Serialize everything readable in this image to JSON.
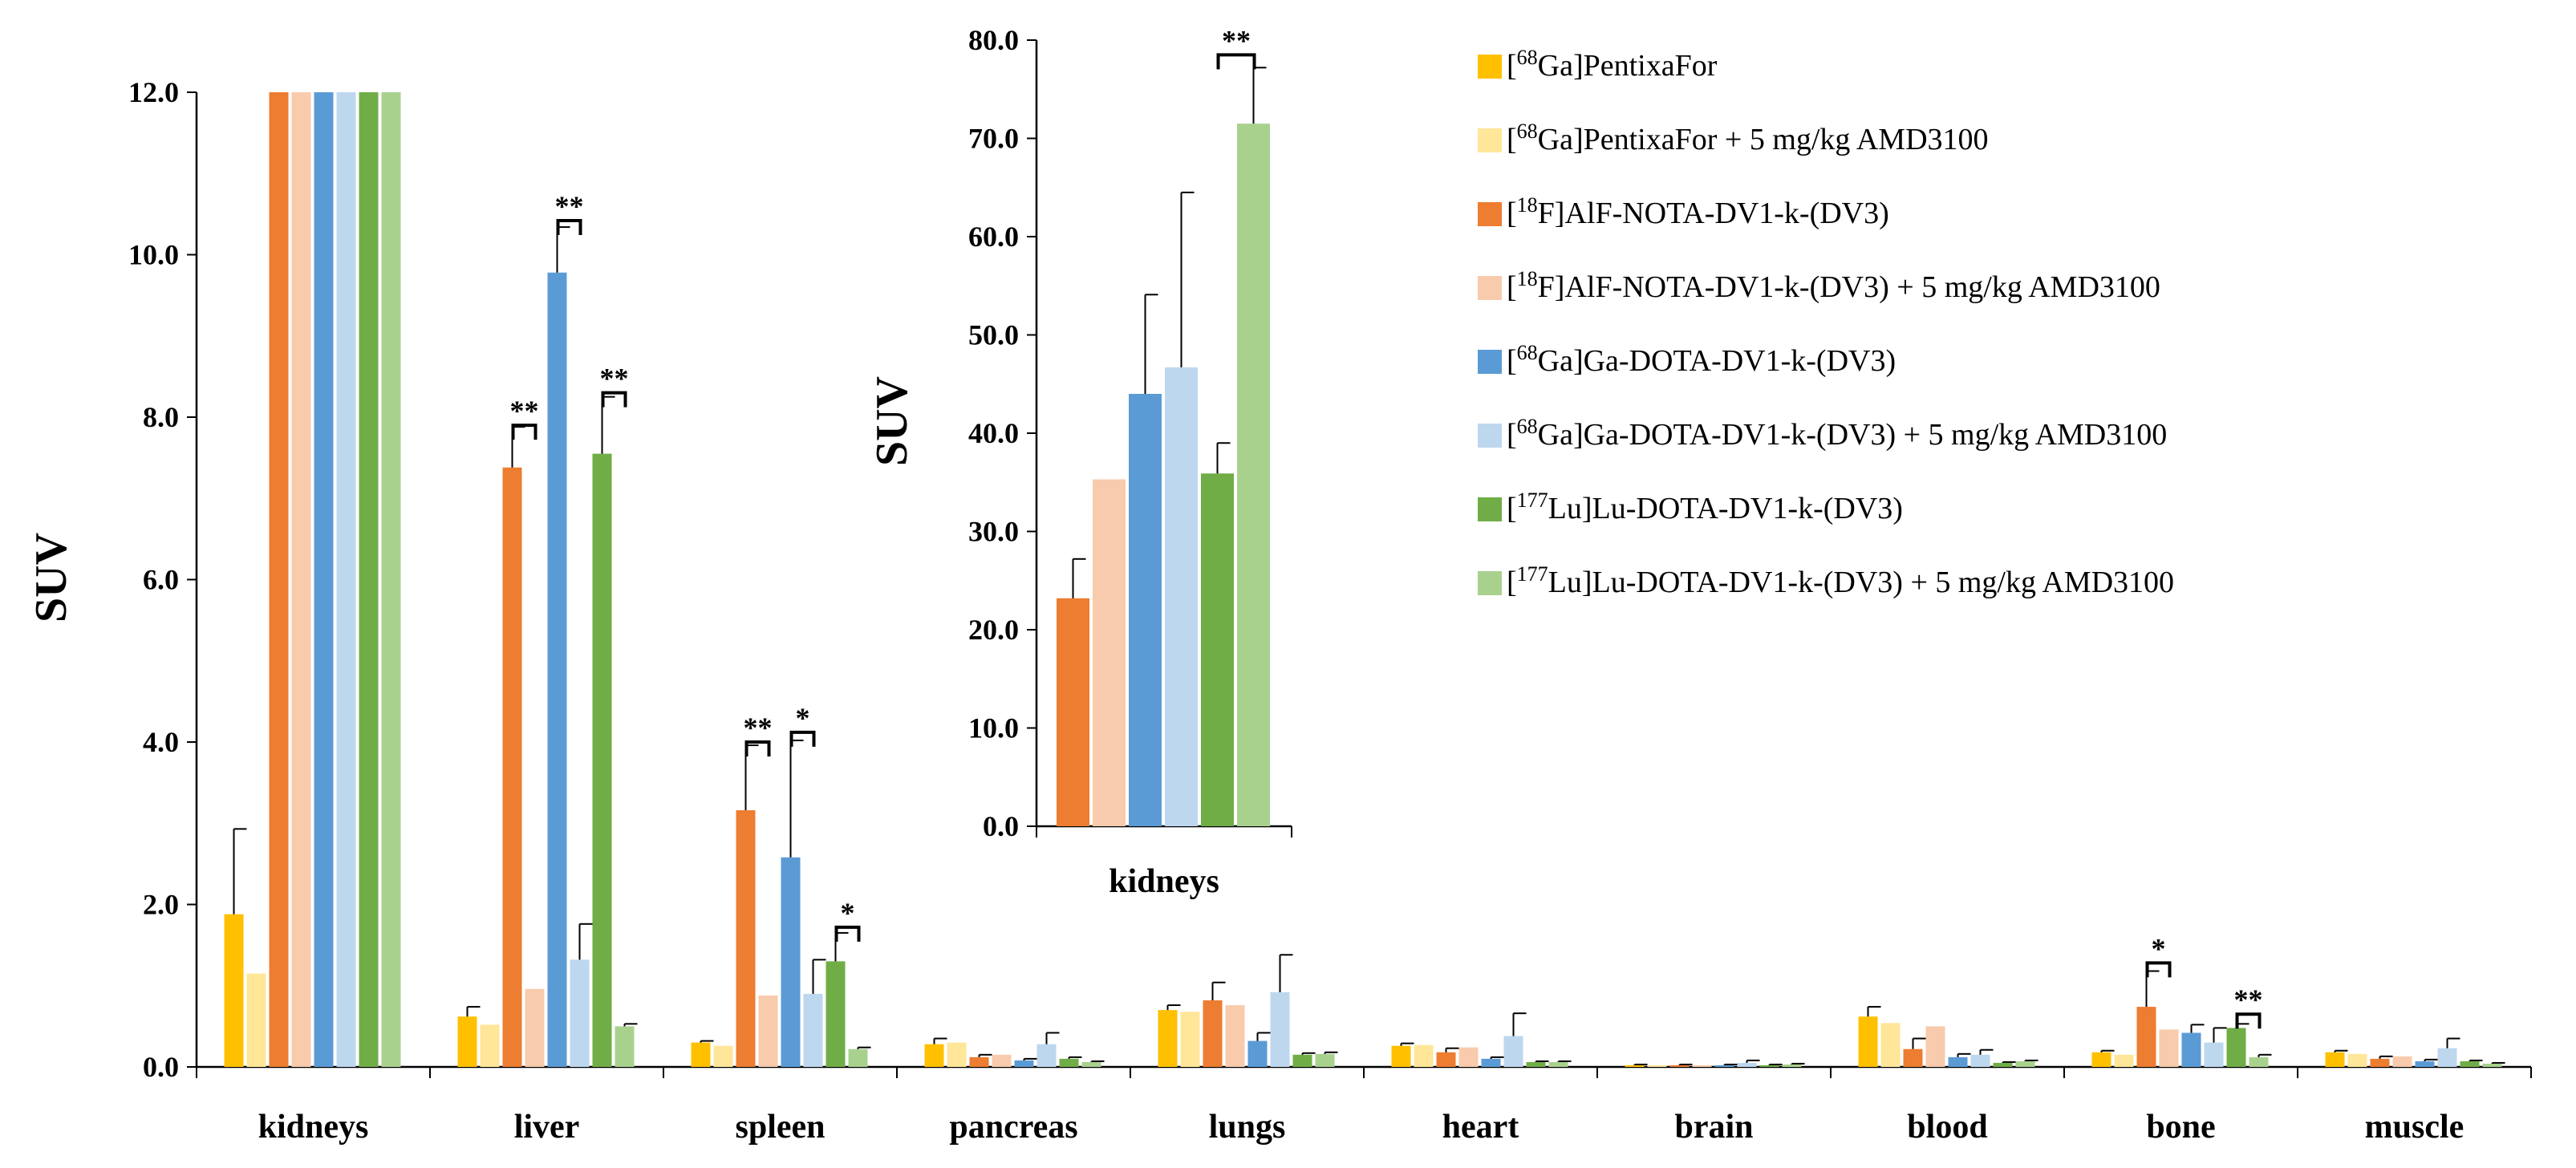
{
  "chart_data": [
    {
      "id": "main",
      "type": "bar",
      "ylabel": "SUV",
      "xlabel": "",
      "ylim": [
        0,
        12
      ],
      "yticks": [
        "0.0",
        "2.0",
        "4.0",
        "6.0",
        "8.0",
        "10.0",
        "12.0"
      ],
      "ytick_values": [
        0,
        2,
        4,
        6,
        8,
        10,
        12
      ],
      "categories": [
        "kidneys",
        "liver",
        "spleen",
        "pancreas",
        "lungs",
        "heart",
        "brain",
        "blood",
        "bone",
        "muscle"
      ],
      "series": [
        {
          "name": "[68Ga]PentixaFor",
          "color": "#FFC000",
          "values": [
            1.88,
            0.62,
            0.3,
            0.28,
            0.7,
            0.26,
            0.02,
            0.62,
            0.18,
            0.18
          ],
          "errors": [
            1.05,
            0.12,
            0.02,
            0.07,
            0.06,
            0.03,
            0.01,
            0.12,
            0.02,
            0.02
          ]
        },
        {
          "name": "[68Ga]PentixaFor + 5 mg/kg AMD3100",
          "color": "#FFE699",
          "values": [
            1.15,
            0.52,
            0.26,
            0.3,
            0.68,
            0.27,
            0.02,
            0.54,
            0.15,
            0.16
          ],
          "errors": [
            0,
            0,
            0,
            0,
            0,
            0,
            0,
            0,
            0,
            0
          ]
        },
        {
          "name": "[18F]AlF-NOTA-DV1-k-(DV3)",
          "color": "#ED7D31",
          "values": [
            12.0,
            7.38,
            3.16,
            0.12,
            0.82,
            0.18,
            0.02,
            0.22,
            0.74,
            0.1
          ],
          "errors": [
            0,
            0.5,
            0.8,
            0.03,
            0.22,
            0.05,
            0.01,
            0.13,
            0.44,
            0.03
          ]
        },
        {
          "name": "[18F]AlF-NOTA-DV1-k-(DV3) + 5 mg/kg AMD3100",
          "color": "#F8CBAD",
          "values": [
            12.0,
            0.96,
            0.88,
            0.15,
            0.76,
            0.24,
            0.02,
            0.5,
            0.46,
            0.13
          ],
          "errors": [
            0,
            0,
            0,
            0,
            0,
            0,
            0,
            0,
            0,
            0
          ]
        },
        {
          "name": "[68Ga]Ga-DOTA-DV1-k-(DV3)",
          "color": "#5B9BD5",
          "values": [
            12.0,
            9.78,
            2.58,
            0.08,
            0.32,
            0.1,
            0.02,
            0.12,
            0.42,
            0.07
          ],
          "errors": [
            0,
            0.56,
            1.44,
            0.02,
            0.1,
            0.02,
            0.01,
            0.04,
            0.1,
            0.02
          ]
        },
        {
          "name": "[68Ga]Ga-DOTA-DV1-k-(DV3) + 5 mg/kg AMD3100",
          "color": "#BDD7EE",
          "values": [
            12.0,
            1.32,
            0.9,
            0.28,
            0.92,
            0.38,
            0.05,
            0.15,
            0.3,
            0.23
          ],
          "errors": [
            0,
            0.44,
            0.42,
            0.14,
            0.46,
            0.28,
            0.03,
            0.06,
            0.18,
            0.12
          ]
        },
        {
          "name": "[177Lu]Lu-DOTA-DV1-k-(DV3)",
          "color": "#70AD47",
          "values": [
            12.0,
            7.55,
            1.3,
            0.1,
            0.15,
            0.06,
            0.02,
            0.05,
            0.48,
            0.07
          ],
          "errors": [
            0,
            0.7,
            0.35,
            0.02,
            0.02,
            0.01,
            0.01,
            0.01,
            0.05,
            0.01
          ]
        },
        {
          "name": "[177Lu]Lu-DOTA-DV1-k-(DV3) + 5 mg/kg AMD3100",
          "color": "#A9D18E",
          "values": [
            12.0,
            0.5,
            0.22,
            0.06,
            0.16,
            0.06,
            0.03,
            0.07,
            0.12,
            0.04
          ],
          "errors": [
            0,
            0.03,
            0.02,
            0.01,
            0.02,
            0.01,
            0.01,
            0.01,
            0.03,
            0.01
          ]
        }
      ],
      "significance": [
        {
          "category": "liver",
          "between": [
            2,
            3
          ],
          "label": "**",
          "level": 7.9
        },
        {
          "category": "liver",
          "between": [
            4,
            5
          ],
          "label": "**",
          "level": 10.42
        },
        {
          "category": "liver",
          "between": [
            6,
            7
          ],
          "label": "**",
          "level": 8.3
        },
        {
          "category": "spleen",
          "between": [
            2,
            3
          ],
          "label": "**",
          "level": 4.0
        },
        {
          "category": "spleen",
          "between": [
            4,
            5
          ],
          "label": "*",
          "level": 4.12
        },
        {
          "category": "spleen",
          "between": [
            6,
            7
          ],
          "label": "*",
          "level": 1.72
        },
        {
          "category": "bone",
          "between": [
            2,
            3
          ],
          "label": "*",
          "level": 1.28
        },
        {
          "category": "bone",
          "between": [
            6,
            7
          ],
          "label": "**",
          "level": 0.65
        }
      ]
    },
    {
      "id": "inset",
      "type": "bar",
      "ylabel": "SUV",
      "xlabel": "",
      "ylim": [
        0,
        80
      ],
      "yticks": [
        "0.0",
        "10.0",
        "20.0",
        "30.0",
        "40.0",
        "50.0",
        "60.0",
        "70.0",
        "80.0"
      ],
      "ytick_values": [
        0,
        10,
        20,
        30,
        40,
        50,
        60,
        70,
        80
      ],
      "categories": [
        "kidneys"
      ],
      "series": [
        {
          "name": "[18F]AlF-NOTA-DV1-k-(DV3)",
          "color": "#ED7D31",
          "values": [
            23.2
          ],
          "errors": [
            4.0
          ]
        },
        {
          "name": "[18F]AlF-NOTA-DV1-k-(DV3) + 5 mg/kg AMD3100",
          "color": "#F8CBAD",
          "values": [
            35.3
          ],
          "errors": [
            0
          ]
        },
        {
          "name": "[68Ga]Ga-DOTA-DV1-k-(DV3)",
          "color": "#5B9BD5",
          "values": [
            44.0
          ],
          "errors": [
            10.1
          ]
        },
        {
          "name": "[68Ga]Ga-DOTA-DV1-k-(DV3) + 5 mg/kg AMD3100",
          "color": "#BDD7EE",
          "values": [
            46.7
          ],
          "errors": [
            17.8
          ]
        },
        {
          "name": "[177Lu]Lu-DOTA-DV1-k-(DV3)",
          "color": "#70AD47",
          "values": [
            35.9
          ],
          "errors": [
            3.1
          ]
        },
        {
          "name": "[177Lu]Lu-DOTA-DV1-k-(DV3) + 5 mg/kg AMD3100",
          "color": "#A9D18E",
          "values": [
            71.5
          ],
          "errors": [
            5.7
          ]
        }
      ],
      "significance": [
        {
          "category": "kidneys",
          "between": [
            4,
            5
          ],
          "label": "**",
          "level": 78.5
        }
      ]
    }
  ],
  "legend": [
    {
      "sup": "68",
      "label_rest": "Ga]PentixaFor",
      "suffix": "",
      "color": "#FFC000"
    },
    {
      "sup": "68",
      "label_rest": "Ga]PentixaFor",
      "suffix": " + 5 mg/kg AMD3100",
      "color": "#FFE699"
    },
    {
      "sup": "18",
      "label_rest": "F]AlF-NOTA-DV1-k-(DV3)",
      "suffix": "",
      "color": "#ED7D31"
    },
    {
      "sup": "18",
      "label_rest": "F]AlF-NOTA-DV1-k-(DV3)",
      "suffix": " + 5 mg/kg AMD3100",
      "color": "#F8CBAD"
    },
    {
      "sup": "68",
      "label_rest": "Ga]Ga-DOTA-DV1-k-(DV3)",
      "suffix": "",
      "color": "#5B9BD5"
    },
    {
      "sup": "68",
      "label_rest": "Ga]Ga-DOTA-DV1-k-(DV3)",
      "suffix": " + 5 mg/kg AMD3100",
      "color": "#BDD7EE"
    },
    {
      "sup": "177",
      "label_rest": "Lu]Lu-DOTA-DV1-k-(DV3)",
      "suffix": "",
      "color": "#70AD47"
    },
    {
      "sup": "177",
      "label_rest": "Lu]Lu-DOTA-DV1-k-(DV3)",
      "suffix": " + 5 mg/kg AMD3100",
      "color": "#A9D18E"
    }
  ]
}
